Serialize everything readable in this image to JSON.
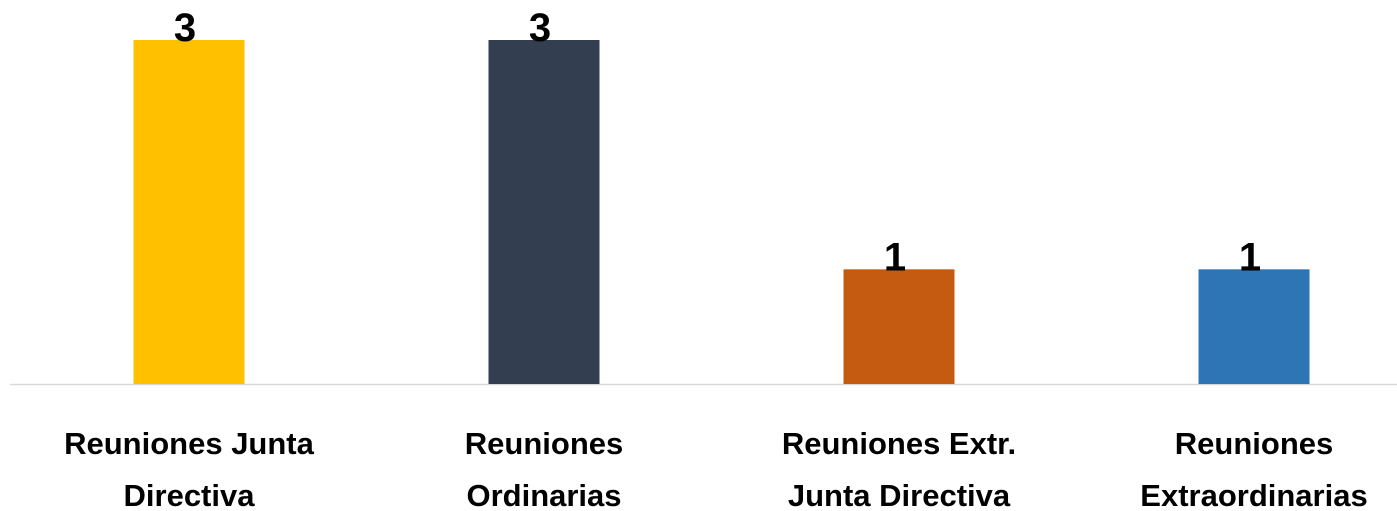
{
  "chart_data": {
    "type": "bar",
    "categories": [
      "Reuniones Junta\nDirectiva",
      "Reuniones\nOrdinarias",
      "Reuniones Extr.\nJunta Directiva",
      "Reuniones\nExtraordinarias"
    ],
    "values": [
      3,
      3,
      1,
      1
    ],
    "colors": [
      "#FFC000",
      "#333F50",
      "#C55A11",
      "#2E75B6"
    ]
  }
}
